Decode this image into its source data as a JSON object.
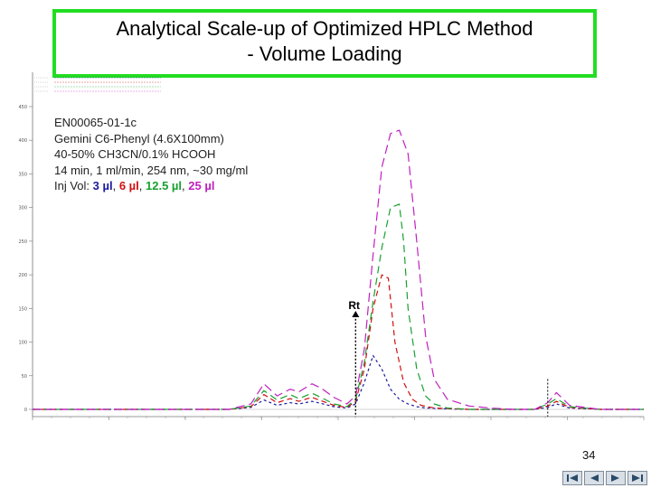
{
  "title": {
    "line1": "Analytical Scale-up of Optimized HPLC Method",
    "line2": "- Volume Loading"
  },
  "info": {
    "sample": "EN00065-01-1c",
    "column": "Gemini C6-Phenyl (4.6X100mm)",
    "mobile_phase": "40-50% CH3CN/0.1% HCOOH",
    "conditions": "14 min, 1 ml/min, 254 nm, ~30 mg/ml",
    "inj_prefix": "Inj Vol: ",
    "volumes": [
      {
        "label": "3 µl",
        "color": "#1a1aa0"
      },
      {
        "label": "6 µl",
        "color": "#d01010"
      },
      {
        "label": "12.5 µl",
        "color": "#18a030"
      },
      {
        "label": "25 µl",
        "color": "#c020c0"
      }
    ],
    "separator": ", "
  },
  "annotation": {
    "rt_label": "Rt"
  },
  "page_number": "34",
  "nav_icons": [
    "first-slide-icon",
    "previous-slide-icon",
    "next-slide-icon",
    "last-slide-icon"
  ],
  "chart_data": {
    "type": "line",
    "title": "",
    "xlabel": "",
    "ylabel": "",
    "xlim": [
      0,
      14
    ],
    "ylim": [
      0,
      450
    ],
    "y_ticks": [
      0,
      50,
      100,
      150,
      200,
      250,
      300,
      350,
      400,
      450
    ],
    "grid": false,
    "rt_marker_x": 7.4,
    "series": [
      {
        "color": "#1a1aa0",
        "dash": "3,3",
        "x": [
          0,
          4.5,
          5.0,
          5.3,
          5.6,
          5.9,
          6.1,
          6.4,
          6.6,
          6.9,
          7.2,
          7.4,
          7.6,
          7.8,
          8.0,
          8.2,
          8.4,
          8.6,
          8.8,
          9.0,
          9.4,
          10,
          11,
          11.5,
          11.8,
          12.0,
          12.3,
          13,
          14
        ],
        "y": [
          0,
          0,
          3,
          14,
          6,
          10,
          8,
          12,
          9,
          4,
          2,
          8,
          40,
          80,
          60,
          30,
          15,
          8,
          4,
          2,
          1,
          0,
          0,
          0,
          3,
          8,
          2,
          0,
          0
        ]
      },
      {
        "color": "#d01010",
        "dash": "6,4",
        "x": [
          0,
          4.5,
          5.0,
          5.3,
          5.6,
          5.9,
          6.1,
          6.4,
          6.6,
          6.9,
          7.2,
          7.4,
          7.6,
          7.8,
          8.0,
          8.15,
          8.3,
          8.5,
          8.7,
          8.9,
          9.2,
          9.6,
          10,
          11,
          11.5,
          11.8,
          12.0,
          12.3,
          13,
          14
        ],
        "y": [
          0,
          0,
          4,
          22,
          10,
          16,
          12,
          18,
          13,
          6,
          3,
          12,
          60,
          150,
          200,
          195,
          100,
          40,
          15,
          6,
          2,
          1,
          0,
          0,
          0,
          5,
          12,
          3,
          0,
          0
        ]
      },
      {
        "color": "#18a030",
        "dash": "8,5",
        "x": [
          0,
          4.5,
          5.0,
          5.3,
          5.6,
          5.9,
          6.1,
          6.4,
          6.6,
          6.9,
          7.2,
          7.4,
          7.6,
          7.8,
          8.0,
          8.2,
          8.4,
          8.5,
          8.6,
          8.8,
          9.0,
          9.2,
          9.5,
          10,
          11,
          11.5,
          11.8,
          12.0,
          12.3,
          13,
          14
        ],
        "y": [
          0,
          0,
          5,
          28,
          14,
          22,
          16,
          24,
          18,
          8,
          4,
          15,
          70,
          160,
          240,
          300,
          305,
          250,
          150,
          60,
          20,
          8,
          2,
          0,
          0,
          0,
          8,
          16,
          4,
          0,
          0
        ]
      },
      {
        "color": "#c020c0",
        "dash": "10,5",
        "x": [
          0,
          4.5,
          5.0,
          5.3,
          5.6,
          5.9,
          6.1,
          6.4,
          6.6,
          6.9,
          7.2,
          7.4,
          7.6,
          7.8,
          8.0,
          8.2,
          8.4,
          8.6,
          8.8,
          9.0,
          9.2,
          9.5,
          10,
          10.5,
          11,
          11.5,
          11.8,
          12.0,
          12.3,
          13,
          14
        ],
        "y": [
          0,
          0,
          8,
          38,
          20,
          30,
          26,
          38,
          32,
          18,
          8,
          20,
          90,
          230,
          360,
          410,
          415,
          380,
          250,
          110,
          45,
          15,
          5,
          2,
          0,
          0,
          10,
          25,
          6,
          0,
          0
        ]
      }
    ]
  }
}
